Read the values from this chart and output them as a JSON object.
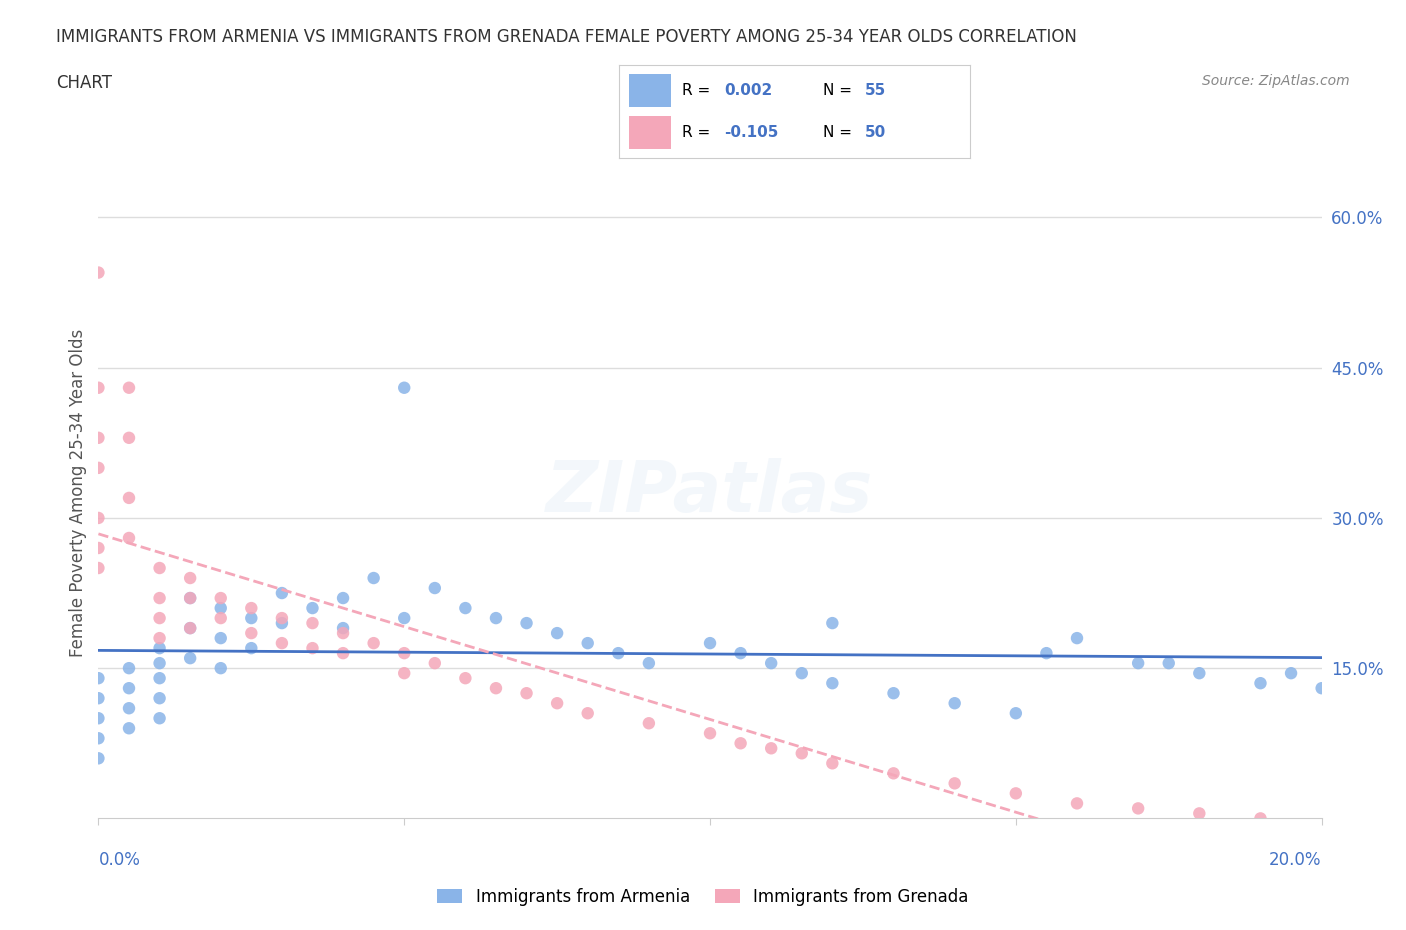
{
  "title_line1": "IMMIGRANTS FROM ARMENIA VS IMMIGRANTS FROM GRENADA FEMALE POVERTY AMONG 25-34 YEAR OLDS CORRELATION",
  "title_line2": "CHART",
  "source_text": "Source: ZipAtlas.com",
  "xlabel": "",
  "ylabel": "Female Poverty Among 25-34 Year Olds",
  "xlim": [
    0.0,
    0.2
  ],
  "ylim": [
    0.0,
    0.65
  ],
  "xtick_labels": [
    "0.0%",
    "20.0%"
  ],
  "ytick_labels": [
    "15.0%",
    "30.0%",
    "45.0%",
    "60.0%"
  ],
  "ytick_values": [
    0.15,
    0.3,
    0.45,
    0.6
  ],
  "color_armenia": "#8ab4e8",
  "color_grenada": "#f4a7b9",
  "R_armenia": 0.002,
  "N_armenia": 55,
  "R_grenada": -0.105,
  "N_grenada": 50,
  "trend_color_armenia": "#4472c4",
  "trend_color_grenada": "#f4a7b9",
  "watermark": "ZIPatlas",
  "armenia_x": [
    0.0,
    0.0,
    0.0,
    0.0,
    0.0,
    0.005,
    0.005,
    0.005,
    0.005,
    0.01,
    0.01,
    0.01,
    0.01,
    0.01,
    0.015,
    0.015,
    0.015,
    0.02,
    0.02,
    0.02,
    0.025,
    0.025,
    0.03,
    0.03,
    0.035,
    0.04,
    0.04,
    0.045,
    0.05,
    0.05,
    0.055,
    0.06,
    0.065,
    0.07,
    0.075,
    0.08,
    0.085,
    0.09,
    0.1,
    0.105,
    0.11,
    0.115,
    0.12,
    0.13,
    0.14,
    0.15,
    0.16,
    0.17,
    0.18,
    0.19,
    0.2,
    0.12,
    0.155,
    0.175,
    0.195
  ],
  "armenia_y": [
    0.14,
    0.12,
    0.1,
    0.08,
    0.06,
    0.15,
    0.13,
    0.11,
    0.09,
    0.17,
    0.155,
    0.14,
    0.12,
    0.1,
    0.22,
    0.19,
    0.16,
    0.21,
    0.18,
    0.15,
    0.2,
    0.17,
    0.225,
    0.195,
    0.21,
    0.22,
    0.19,
    0.24,
    0.43,
    0.2,
    0.23,
    0.21,
    0.2,
    0.195,
    0.185,
    0.175,
    0.165,
    0.155,
    0.175,
    0.165,
    0.155,
    0.145,
    0.135,
    0.125,
    0.115,
    0.105,
    0.18,
    0.155,
    0.145,
    0.135,
    0.13,
    0.195,
    0.165,
    0.155,
    0.145
  ],
  "grenada_x": [
    0.0,
    0.0,
    0.0,
    0.0,
    0.0,
    0.0,
    0.0,
    0.005,
    0.005,
    0.005,
    0.005,
    0.01,
    0.01,
    0.01,
    0.01,
    0.015,
    0.015,
    0.015,
    0.02,
    0.02,
    0.025,
    0.025,
    0.03,
    0.03,
    0.035,
    0.035,
    0.04,
    0.04,
    0.045,
    0.05,
    0.05,
    0.055,
    0.06,
    0.065,
    0.07,
    0.075,
    0.08,
    0.09,
    0.1,
    0.105,
    0.11,
    0.115,
    0.12,
    0.13,
    0.14,
    0.15,
    0.16,
    0.17,
    0.18,
    0.19
  ],
  "grenada_y": [
    0.545,
    0.43,
    0.38,
    0.35,
    0.3,
    0.27,
    0.25,
    0.43,
    0.38,
    0.32,
    0.28,
    0.25,
    0.22,
    0.2,
    0.18,
    0.24,
    0.22,
    0.19,
    0.22,
    0.2,
    0.21,
    0.185,
    0.2,
    0.175,
    0.195,
    0.17,
    0.185,
    0.165,
    0.175,
    0.165,
    0.145,
    0.155,
    0.14,
    0.13,
    0.125,
    0.115,
    0.105,
    0.095,
    0.085,
    0.075,
    0.07,
    0.065,
    0.055,
    0.045,
    0.035,
    0.025,
    0.015,
    0.01,
    0.005,
    0.0
  ],
  "background_color": "#ffffff",
  "grid_color": "#dddddd",
  "title_color": "#333333",
  "axis_label_color": "#555555",
  "tick_color": "#4472c4",
  "legend_text_color": "#4472c4"
}
